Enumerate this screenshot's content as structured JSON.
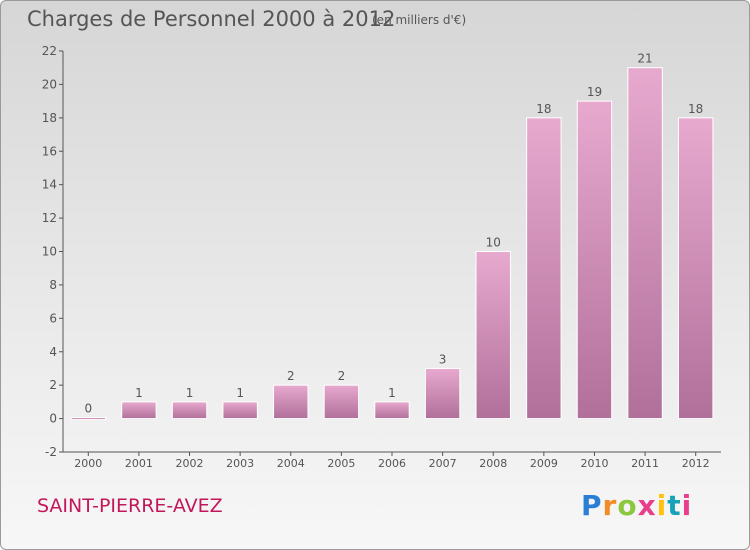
{
  "header": {
    "title": "Charges de Personnel 2000 à 2012",
    "subtitle": "(en milliers d'€)"
  },
  "footer": {
    "commune": "SAINT-PIERRE-AVEZ",
    "logo_text": "Proxiti"
  },
  "colors": {
    "bar_light": "#e8a9cf",
    "bar_dark": "#b0709a",
    "commune_text": "#c2185b",
    "text": "#555555"
  },
  "chart_data": {
    "type": "bar",
    "title": "Charges de Personnel 2000 à 2012",
    "subtitle": "(en milliers d'€)",
    "categories": [
      "2000",
      "2001",
      "2002",
      "2003",
      "2004",
      "2005",
      "2006",
      "2007",
      "2008",
      "2009",
      "2010",
      "2011",
      "2012"
    ],
    "values": [
      0,
      1,
      1,
      1,
      2,
      2,
      1,
      3,
      10,
      18,
      19,
      21,
      18
    ],
    "value_labels": [
      "0",
      "1",
      "1",
      "1",
      "2",
      "2",
      "1",
      "3",
      "10",
      "18",
      "19",
      "21",
      "18"
    ],
    "ylim": [
      -2,
      22
    ],
    "yticks": [
      -2,
      0,
      2,
      4,
      6,
      8,
      10,
      12,
      14,
      16,
      18,
      20,
      22
    ],
    "ytick_labels": [
      "-2",
      "0",
      "2",
      "4",
      "6",
      "8",
      "10",
      "12",
      "14",
      "16",
      "18",
      "20",
      "22"
    ],
    "grid": false,
    "legend": "none"
  }
}
